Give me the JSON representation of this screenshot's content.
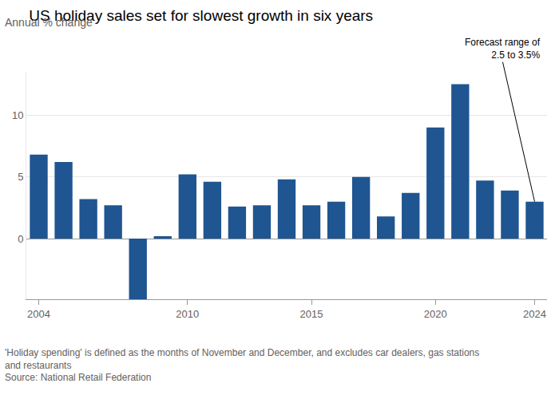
{
  "chart_data": {
    "type": "bar",
    "title": "US holiday sales set for slowest growth in six years",
    "subtitle": "Annual % change",
    "x": [
      2004,
      2005,
      2006,
      2007,
      2008,
      2009,
      2010,
      2011,
      2012,
      2013,
      2014,
      2015,
      2016,
      2017,
      2018,
      2019,
      2020,
      2021,
      2022,
      2023,
      2024
    ],
    "values": [
      6.8,
      6.2,
      3.2,
      2.7,
      -4.9,
      0.2,
      5.2,
      4.6,
      2.6,
      2.7,
      4.8,
      2.7,
      3.0,
      5.0,
      1.8,
      3.7,
      9.0,
      12.5,
      4.7,
      3.9,
      3.0
    ],
    "color": "#1f5591",
    "xlim": [
      2003.5,
      2024.5
    ],
    "xticks": [
      2004,
      2010,
      2015,
      2020,
      2024
    ],
    "ylim": [
      -4.9,
      13.5
    ],
    "yticks": [
      0,
      5,
      10
    ],
    "grid": true,
    "annotation": {
      "text": [
        "Forecast range of",
        "2.5 to 3.5%"
      ],
      "x": 2024
    },
    "notes": [
      "'Holiday spending' is defined as the months of November and December, and excludes car dealers, gas stations",
      "and restaurants",
      "Source: National Retail Federation"
    ]
  }
}
